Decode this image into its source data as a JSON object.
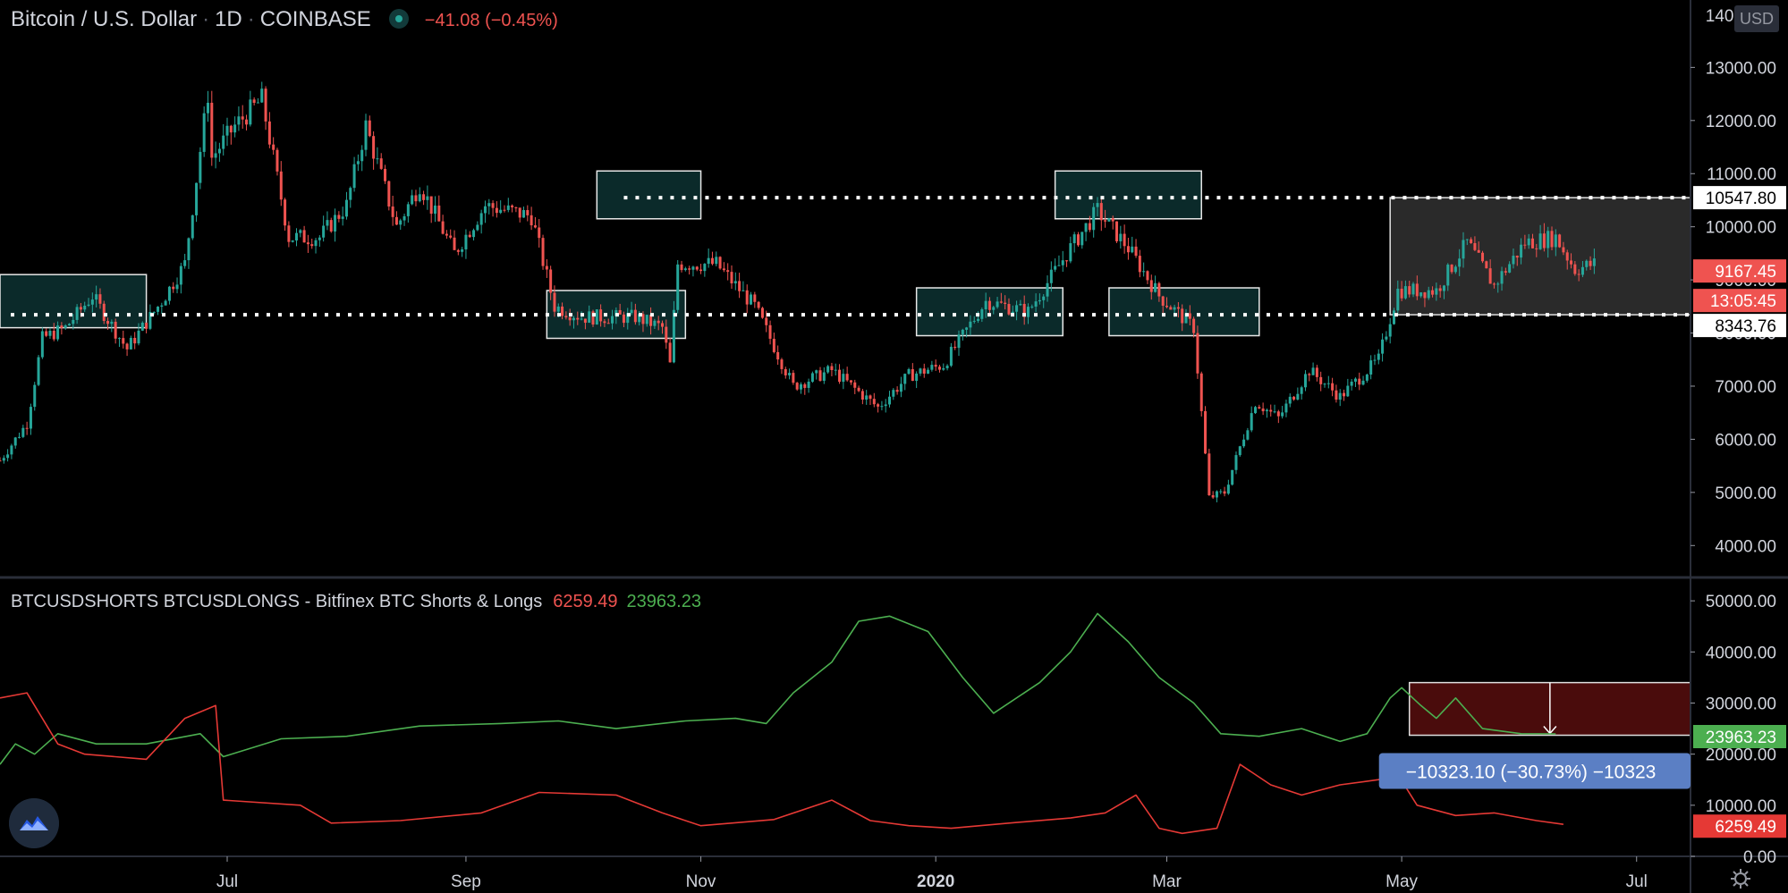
{
  "header": {
    "symbol_name": "Bitcoin / U.S. Dollar",
    "interval": "1D",
    "exchange": "COINBASE",
    "change": "−41.08 (−0.45%)",
    "currency_badge": "USD"
  },
  "indicator": {
    "title": "BTCUSDSHORTS BTCUSDLONGS - Bitfinex BTC Shorts & Longs",
    "shorts_value": "6259.49",
    "longs_value": "23963.23"
  },
  "colors": {
    "up": "#26a69a",
    "down": "#ef5350",
    "longs": "#4caf50",
    "shorts": "#e53935",
    "zone_fill": "#0b2a2a",
    "range_fill": "#2a2a2a",
    "measure_fill": "#4a0c0c",
    "measure_label": "#5b7fc4"
  },
  "icons": [
    "tradingview-logo-icon",
    "settings-gear-icon",
    "status-dot-icon"
  ],
  "chart_data": [
    {
      "type": "candlestick",
      "title": "Bitcoin / U.S. Dollar 1D COINBASE",
      "price_axis_ticks": [
        "4000.00",
        "5000.00",
        "6000.00",
        "7000.00",
        "8000.00",
        "9000.00",
        "10000.00",
        "11000.00",
        "12000.00",
        "13000.00"
      ],
      "price_axis_top_partial": "14000.00",
      "ylim": [
        3500,
        14100
      ],
      "x_ticks": [
        "Jul",
        "Sep",
        "Nov",
        "2020",
        "Mar",
        "May",
        "Jul"
      ],
      "x_tick_dates": [
        "2019-07-01",
        "2019-09-01",
        "2019-11-01",
        "2020-01-01",
        "2020-03-01",
        "2020-05-01",
        "2020-07-01"
      ],
      "xlim": [
        "2019-05-03",
        "2020-07-15"
      ],
      "close_path": [
        [
          "2019-05-03",
          5600
        ],
        [
          "2019-05-10",
          6300
        ],
        [
          "2019-05-14",
          7900
        ],
        [
          "2019-05-20",
          8100
        ],
        [
          "2019-05-27",
          8700
        ],
        [
          "2019-06-05",
          7700
        ],
        [
          "2019-06-14",
          8600
        ],
        [
          "2019-06-20",
          9300
        ],
        [
          "2019-06-26",
          12500
        ],
        [
          "2019-06-27",
          11300
        ],
        [
          "2019-07-03",
          11900
        ],
        [
          "2019-07-10",
          12400
        ],
        [
          "2019-07-17",
          9800
        ],
        [
          "2019-07-25",
          9800
        ],
        [
          "2019-08-01",
          10400
        ],
        [
          "2019-08-06",
          11900
        ],
        [
          "2019-08-14",
          10000
        ],
        [
          "2019-08-20",
          10800
        ],
        [
          "2019-08-29",
          9500
        ],
        [
          "2019-09-06",
          10400
        ],
        [
          "2019-09-18",
          10200
        ],
        [
          "2019-09-24",
          8500
        ],
        [
          "2019-10-01",
          8300
        ],
        [
          "2019-10-15",
          8300
        ],
        [
          "2019-10-22",
          8100
        ],
        [
          "2019-10-24",
          7400
        ],
        [
          "2019-10-26",
          9300
        ],
        [
          "2019-11-05",
          9300
        ],
        [
          "2019-11-15",
          8500
        ],
        [
          "2019-11-25",
          7000
        ],
        [
          "2019-12-05",
          7300
        ],
        [
          "2019-12-17",
          6600
        ],
        [
          "2019-12-25",
          7200
        ],
        [
          "2020-01-03",
          7400
        ],
        [
          "2020-01-14",
          8600
        ],
        [
          "2020-01-25",
          8400
        ],
        [
          "2020-02-05",
          9600
        ],
        [
          "2020-02-12",
          10300
        ],
        [
          "2020-02-20",
          9600
        ],
        [
          "2020-02-28",
          8700
        ],
        [
          "2020-03-08",
          8100
        ],
        [
          "2020-03-12",
          4900
        ],
        [
          "2020-03-16",
          5000
        ],
        [
          "2020-03-24",
          6700
        ],
        [
          "2020-03-30",
          6400
        ],
        [
          "2020-04-07",
          7300
        ],
        [
          "2020-04-15",
          6800
        ],
        [
          "2020-04-25",
          7500
        ],
        [
          "2020-04-30",
          8800
        ],
        [
          "2020-05-10",
          8800
        ],
        [
          "2020-05-18",
          9700
        ],
        [
          "2020-05-25",
          8900
        ],
        [
          "2020-06-02",
          9700
        ],
        [
          "2020-06-10",
          9800
        ],
        [
          "2020-06-15",
          9200
        ],
        [
          "2020-06-20",
          9300
        ]
      ],
      "levels": [
        {
          "name": "resistance",
          "value": 10547.8,
          "label": "10547.80"
        },
        {
          "name": "support",
          "value": 8343.76,
          "label": "8343.76"
        }
      ],
      "last_price_label": "9167.45",
      "countdown_label": "13:05:45",
      "zones": [
        {
          "start": "2019-05-03",
          "end": "2019-06-10",
          "low": 8100,
          "high": 9100
        },
        {
          "start": "2019-09-22",
          "end": "2019-10-28",
          "low": 7900,
          "high": 8800
        },
        {
          "start": "2019-10-05",
          "end": "2019-11-01",
          "low": 10150,
          "high": 11050
        },
        {
          "start": "2019-12-27",
          "end": "2020-02-03",
          "low": 7950,
          "high": 8850
        },
        {
          "start": "2020-02-01",
          "end": "2020-03-10",
          "low": 10150,
          "high": 11050
        },
        {
          "start": "2020-02-15",
          "end": "2020-03-25",
          "low": 7950,
          "high": 8850
        }
      ],
      "range_box": {
        "start": "2020-04-28",
        "end": "2020-07-15",
        "low": 8343.76,
        "high": 10547.8
      }
    },
    {
      "type": "line",
      "title": "BTCUSDSHORTS BTCUSDLONGS - Bitfinex BTC Shorts & Longs",
      "y_ticks": [
        "0.00",
        "10000.00",
        "20000.00",
        "30000.00",
        "40000.00",
        "50000.00"
      ],
      "ylim": [
        0,
        53000
      ],
      "series": [
        {
          "name": "BTCUSDLONGS",
          "last_value": "23963.23",
          "points": [
            [
              "2019-05-03",
              18000
            ],
            [
              "2019-05-07",
              22000
            ],
            [
              "2019-05-12",
              20000
            ],
            [
              "2019-05-18",
              24000
            ],
            [
              "2019-05-28",
              22000
            ],
            [
              "2019-06-10",
              22000
            ],
            [
              "2019-06-24",
              24000
            ],
            [
              "2019-06-30",
              19500
            ],
            [
              "2019-07-15",
              23000
            ],
            [
              "2019-08-01",
              23500
            ],
            [
              "2019-08-20",
              25500
            ],
            [
              "2019-09-10",
              26000
            ],
            [
              "2019-09-25",
              26500
            ],
            [
              "2019-10-10",
              25000
            ],
            [
              "2019-10-28",
              26500
            ],
            [
              "2019-11-10",
              27000
            ],
            [
              "2019-11-18",
              26000
            ],
            [
              "2019-11-25",
              32000
            ],
            [
              "2019-12-05",
              38000
            ],
            [
              "2019-12-12",
              46000
            ],
            [
              "2019-12-20",
              47000
            ],
            [
              "2019-12-30",
              44000
            ],
            [
              "2020-01-08",
              35000
            ],
            [
              "2020-01-16",
              28000
            ],
            [
              "2020-01-28",
              34000
            ],
            [
              "2020-02-05",
              40000
            ],
            [
              "2020-02-12",
              47500
            ],
            [
              "2020-02-20",
              42000
            ],
            [
              "2020-02-28",
              35000
            ],
            [
              "2020-03-08",
              30000
            ],
            [
              "2020-03-15",
              24000
            ],
            [
              "2020-03-25",
              23500
            ],
            [
              "2020-04-05",
              25000
            ],
            [
              "2020-04-15",
              22500
            ],
            [
              "2020-04-22",
              24000
            ],
            [
              "2020-04-28",
              31000
            ],
            [
              "2020-05-01",
              33000
            ],
            [
              "2020-05-06",
              29500
            ],
            [
              "2020-05-10",
              27000
            ],
            [
              "2020-05-15",
              31000
            ],
            [
              "2020-05-22",
              25000
            ],
            [
              "2020-06-01",
              24000
            ],
            [
              "2020-06-10",
              23963
            ]
          ]
        },
        {
          "name": "BTCUSDSHORTS",
          "last_value": "6259.49",
          "points": [
            [
              "2019-05-03",
              31000
            ],
            [
              "2019-05-10",
              32000
            ],
            [
              "2019-05-18",
              22000
            ],
            [
              "2019-05-25",
              20000
            ],
            [
              "2019-06-10",
              19000
            ],
            [
              "2019-06-20",
              27000
            ],
            [
              "2019-06-28",
              29500
            ],
            [
              "2019-06-30",
              11000
            ],
            [
              "2019-07-20",
              10000
            ],
            [
              "2019-07-28",
              6500
            ],
            [
              "2019-08-15",
              7000
            ],
            [
              "2019-09-05",
              8500
            ],
            [
              "2019-09-20",
              12500
            ],
            [
              "2019-10-10",
              12000
            ],
            [
              "2019-10-22",
              8500
            ],
            [
              "2019-11-01",
              6000
            ],
            [
              "2019-11-20",
              7200
            ],
            [
              "2019-12-05",
              11000
            ],
            [
              "2019-12-15",
              7000
            ],
            [
              "2019-12-25",
              6000
            ],
            [
              "2020-01-05",
              5500
            ],
            [
              "2020-01-20",
              6500
            ],
            [
              "2020-02-05",
              7500
            ],
            [
              "2020-02-14",
              8500
            ],
            [
              "2020-02-22",
              12000
            ],
            [
              "2020-02-28",
              5500
            ],
            [
              "2020-03-05",
              4500
            ],
            [
              "2020-03-14",
              5500
            ],
            [
              "2020-03-20",
              18000
            ],
            [
              "2020-03-28",
              14000
            ],
            [
              "2020-04-05",
              12000
            ],
            [
              "2020-04-15",
              14000
            ],
            [
              "2020-04-25",
              15000
            ],
            [
              "2020-04-30",
              16000
            ],
            [
              "2020-05-05",
              10000
            ],
            [
              "2020-05-15",
              8000
            ],
            [
              "2020-05-25",
              8500
            ],
            [
              "2020-06-05",
              7000
            ],
            [
              "2020-06-12",
              6259
            ]
          ]
        }
      ],
      "measure": {
        "start": "2020-05-03",
        "end": "2020-07-15",
        "from": 34000,
        "to": 23700,
        "label": "−10323.10 (−30.73%) −10323"
      }
    }
  ]
}
